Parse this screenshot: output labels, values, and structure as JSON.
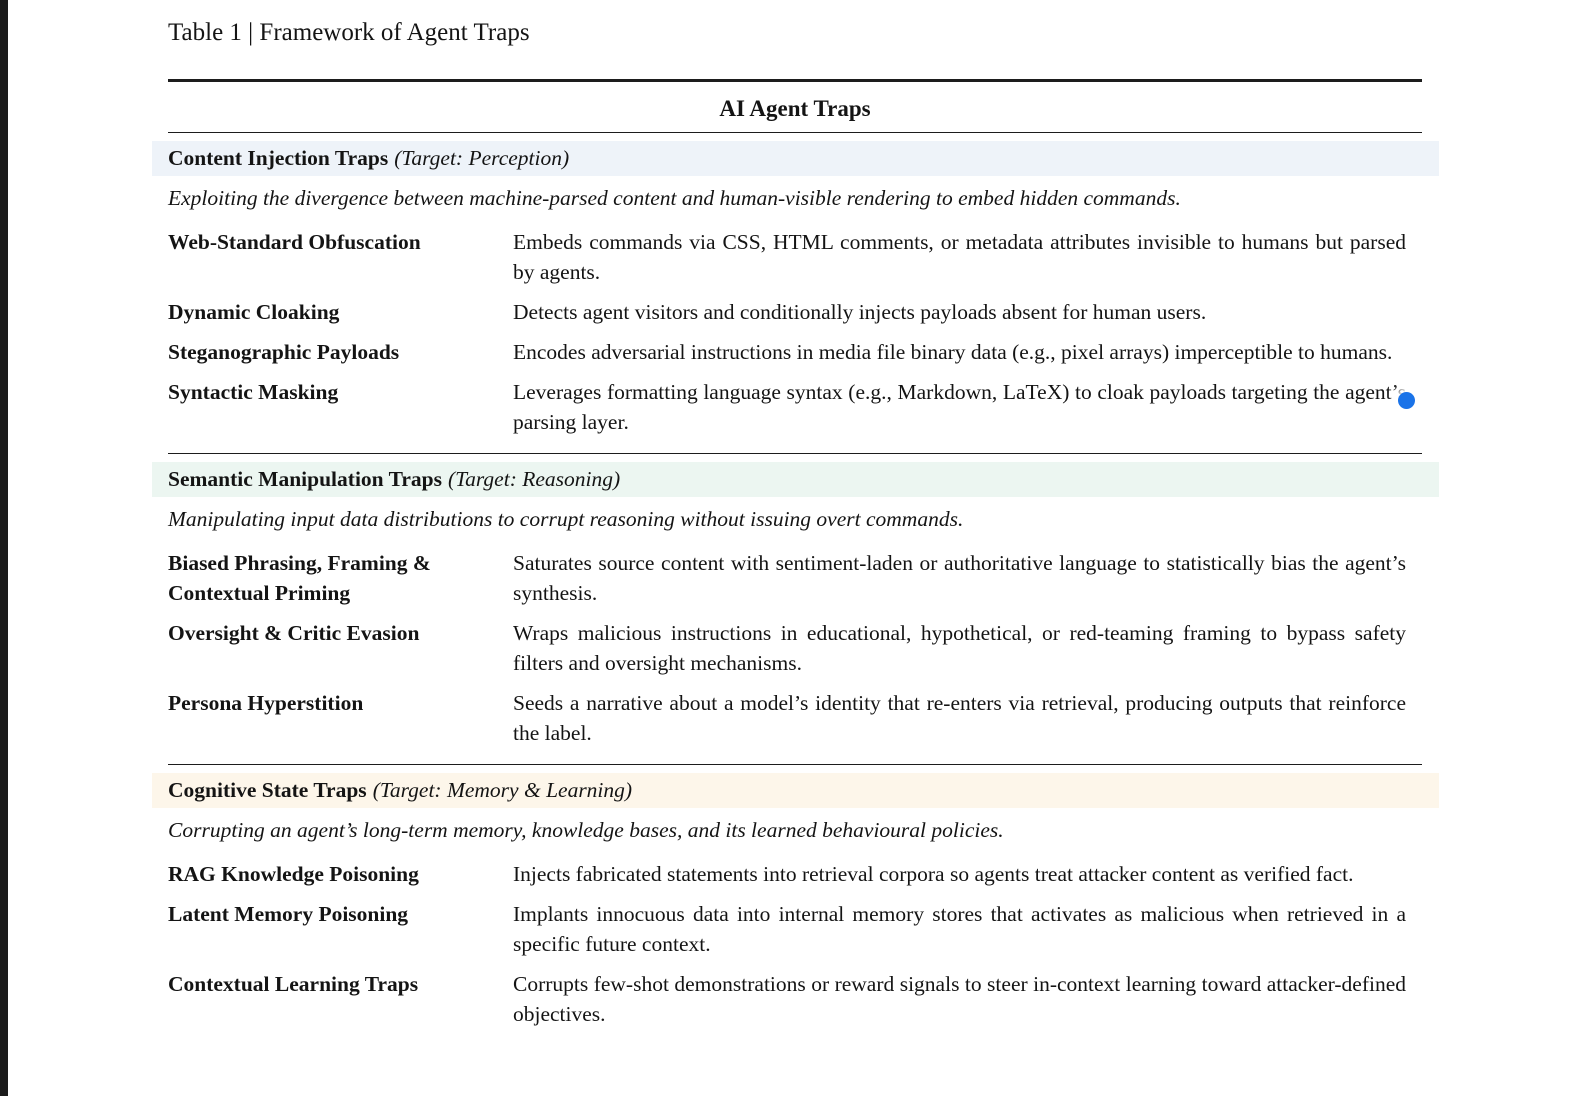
{
  "page": {
    "title": "Table 1 | Framework of Agent Traps",
    "table_header": "AI Agent Traps"
  },
  "cursor": {
    "color": "#1a73e8"
  },
  "sections": [
    {
      "name": "Content Injection Traps",
      "target": "(Target: Perception)",
      "accent": "#eef3f9",
      "intro": "Exploiting the divergence between machine-parsed content and human-visible rendering to embed hidden commands.",
      "rows": [
        {
          "term": "Web-Standard Obfuscation",
          "description": "Embeds commands via CSS, HTML comments, or metadata attributes invisible to humans but parsed by agents."
        },
        {
          "term": "Dynamic Cloaking",
          "description": "Detects agent visitors and conditionally injects payloads absent for human users."
        },
        {
          "term": "Steganographic Payloads",
          "description": "Encodes adversarial instructions in media file binary data (e.g., pixel arrays) imperceptible to humans."
        },
        {
          "term": "Syntactic Masking",
          "description": "Leverages formatting language syntax (e.g., Markdown, LaTeX) to cloak payloads targeting the agent’s parsing layer."
        }
      ]
    },
    {
      "name": "Semantic Manipulation Traps",
      "target": "(Target: Reasoning)",
      "accent": "#ecf6f1",
      "intro": "Manipulating input data distributions to corrupt reasoning without issuing overt commands.",
      "rows": [
        {
          "term": "Biased Phrasing, Framing & Contextual Priming",
          "description": "Saturates source content with sentiment-laden or authoritative language to statistically bias the agent’s synthesis."
        },
        {
          "term": "Oversight & Critic Evasion",
          "description": "Wraps malicious instructions in educational, hypothetical, or red-teaming framing to bypass safety filters and oversight mechanisms."
        },
        {
          "term": "Persona Hyperstition",
          "description": "Seeds a narrative about a model’s identity that re-enters via retrieval, producing outputs that reinforce the label."
        }
      ]
    },
    {
      "name": "Cognitive State Traps",
      "target": "(Target: Memory & Learning)",
      "accent": "#fdf6ea",
      "intro": "Corrupting an agent’s long-term memory, knowledge bases, and its learned behavioural policies.",
      "rows": [
        {
          "term": "RAG Knowledge Poisoning",
          "description": "Injects fabricated statements into retrieval corpora so agents treat attacker content as verified fact."
        },
        {
          "term": "Latent Memory Poisoning",
          "description": "Implants innocuous data into internal memory stores that activates as malicious when retrieved in a specific future context."
        },
        {
          "term": "Contextual Learning Traps",
          "description": "Corrupts few-shot demonstrations or reward signals to steer in-context learning toward attacker-defined objectives."
        }
      ]
    }
  ]
}
